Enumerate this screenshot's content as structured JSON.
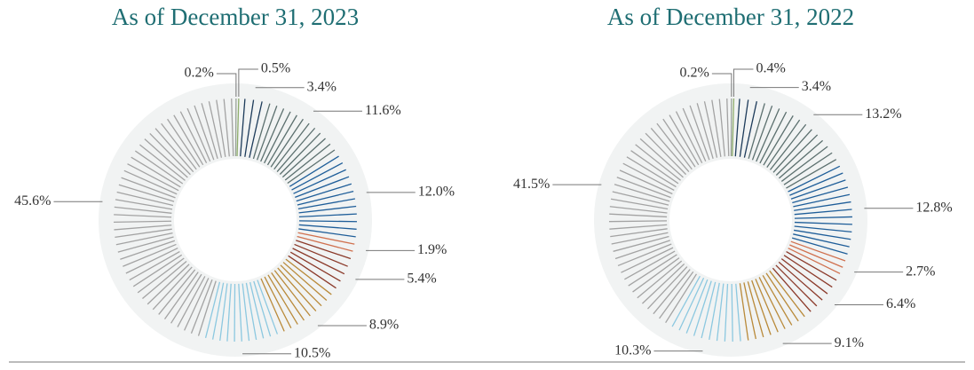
{
  "chart_data": [
    {
      "type": "pie",
      "title": "As of December 31, 2023",
      "values": [
        0.2,
        0.5,
        3.4,
        11.6,
        12.0,
        1.9,
        5.4,
        8.9,
        10.5,
        45.6
      ],
      "value_labels": [
        "0.2%",
        "0.5%",
        "3.4%",
        "11.6%",
        "12.0%",
        "1.9%",
        "5.4%",
        "8.9%",
        "10.5%",
        "45.6%"
      ],
      "colors": [
        "#9aa39a",
        "#8fae6c",
        "#1d3b5a",
        "#5b6f6e",
        "#1f5e99",
        "#d0714f",
        "#8b3a2a",
        "#b98a3a",
        "#8cc8e0",
        "#a3a3a3"
      ]
    },
    {
      "type": "pie",
      "title": "As of December 31, 2022",
      "values": [
        0.2,
        0.4,
        3.4,
        13.2,
        12.8,
        2.7,
        6.4,
        9.1,
        10.3,
        41.5
      ],
      "value_labels": [
        "0.2%",
        "0.4%",
        "3.4%",
        "13.2%",
        "12.8%",
        "2.7%",
        "6.4%",
        "9.1%",
        "10.3%",
        "41.5%"
      ],
      "colors": [
        "#9aa39a",
        "#8fae6c",
        "#1d3b5a",
        "#5b6f6e",
        "#1f5e99",
        "#d0714f",
        "#8b3a2a",
        "#b98a3a",
        "#8cc8e0",
        "#a3a3a3"
      ]
    }
  ]
}
